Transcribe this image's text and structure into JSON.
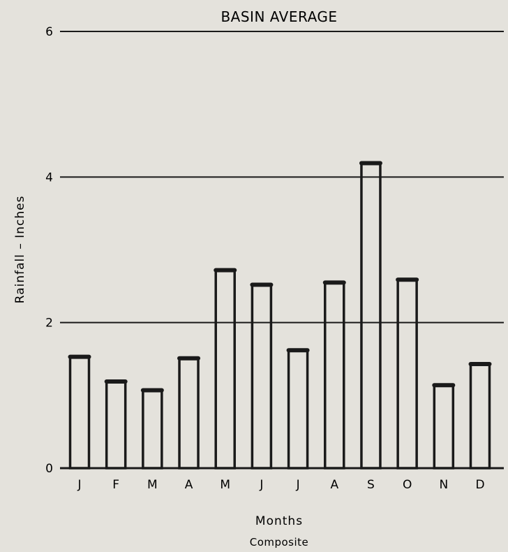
{
  "chart_data": {
    "type": "bar",
    "title": "BASIN AVERAGE",
    "xlabel": "Months",
    "ylabel": "Rainfall – Inches",
    "caption": "Composite",
    "categories": [
      "J",
      "F",
      "M",
      "A",
      "M",
      "J",
      "J",
      "A",
      "S",
      "O",
      "N",
      "D"
    ],
    "values": [
      1.53,
      1.19,
      1.07,
      1.51,
      2.72,
      2.52,
      1.62,
      2.55,
      4.19,
      2.59,
      1.14,
      1.43
    ],
    "ylim": [
      0,
      6
    ],
    "yticks": [
      0,
      2,
      4,
      6
    ],
    "ytick_labels": [
      "0",
      "2",
      "4",
      "6"
    ],
    "grid": true,
    "colors": {
      "background": "#e4e2dc",
      "ink": "#1a1a1a"
    }
  }
}
